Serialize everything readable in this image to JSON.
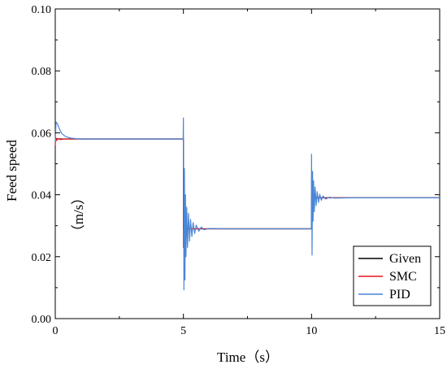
{
  "chart_data": {
    "type": "line",
    "xlabel": "Time（s）",
    "ylabel": "Feed speed",
    "ylabel_unit": "（m/s）",
    "xlim": [
      0,
      15
    ],
    "ylim": [
      0.0,
      0.1
    ],
    "x_ticks": [
      0,
      5,
      10,
      15
    ],
    "x_tick_labels": [
      "0",
      "5",
      "10",
      "15"
    ],
    "y_ticks": [
      0.0,
      0.02,
      0.04,
      0.06,
      0.08,
      0.1
    ],
    "y_tick_labels": [
      "0.00",
      "0.02",
      "0.04",
      "0.06",
      "0.08",
      "0.10"
    ],
    "grid": false,
    "legend_position": "bottom-right",
    "series": [
      {
        "name": "Given",
        "color": "#000000",
        "x": [
          0,
          5,
          5,
          10,
          10,
          15
        ],
        "y": [
          0.058,
          0.058,
          0.029,
          0.029,
          0.039,
          0.039
        ]
      },
      {
        "name": "SMC",
        "color": "#e8141c",
        "x": [
          0,
          0.02,
          0.05,
          0.1,
          0.2,
          0.3,
          0.5,
          5.0,
          5.0,
          5.02,
          5.05,
          5.1,
          5.15,
          5.2,
          5.3,
          5.4,
          5.5,
          10.0,
          10.0,
          10.03,
          10.08,
          10.12,
          10.2,
          10.3,
          10.5,
          15
        ],
        "y": [
          0.056,
          0.0585,
          0.0575,
          0.0582,
          0.0578,
          0.058,
          0.058,
          0.058,
          0.023,
          0.031,
          0.027,
          0.03,
          0.0285,
          0.0292,
          0.029,
          0.029,
          0.029,
          0.029,
          0.04,
          0.038,
          0.0395,
          0.0388,
          0.0391,
          0.039,
          0.039,
          0.039
        ]
      },
      {
        "name": "PID",
        "color": "#4a86d6",
        "x": [
          0,
          0.03,
          0.08,
          0.15,
          0.25,
          0.4,
          0.6,
          0.8,
          1.0,
          1.5,
          4.99,
          5.0,
          5.02,
          5.04,
          5.06,
          5.08,
          5.1,
          5.13,
          5.16,
          5.2,
          5.24,
          5.28,
          5.33,
          5.38,
          5.44,
          5.5,
          5.6,
          5.7,
          5.8,
          6.0,
          6.5,
          9.99,
          10.0,
          10.02,
          10.04,
          10.06,
          10.08,
          10.11,
          10.14,
          10.18,
          10.22,
          10.27,
          10.32,
          10.38,
          10.45,
          10.55,
          10.7,
          10.9,
          11.5,
          15
        ],
        "y": [
          0.057,
          0.0635,
          0.063,
          0.0615,
          0.0598,
          0.0588,
          0.0583,
          0.0581,
          0.058,
          0.058,
          0.058,
          0.0648,
          0.0093,
          0.0485,
          0.0125,
          0.04,
          0.02,
          0.036,
          0.023,
          0.034,
          0.025,
          0.032,
          0.0265,
          0.031,
          0.0275,
          0.0302,
          0.0282,
          0.0296,
          0.0287,
          0.0291,
          0.029,
          0.029,
          0.0531,
          0.0205,
          0.0475,
          0.0315,
          0.0445,
          0.0345,
          0.0425,
          0.0365,
          0.041,
          0.0375,
          0.0402,
          0.0382,
          0.0396,
          0.0386,
          0.0392,
          0.0389,
          0.039,
          0.039
        ]
      }
    ]
  }
}
